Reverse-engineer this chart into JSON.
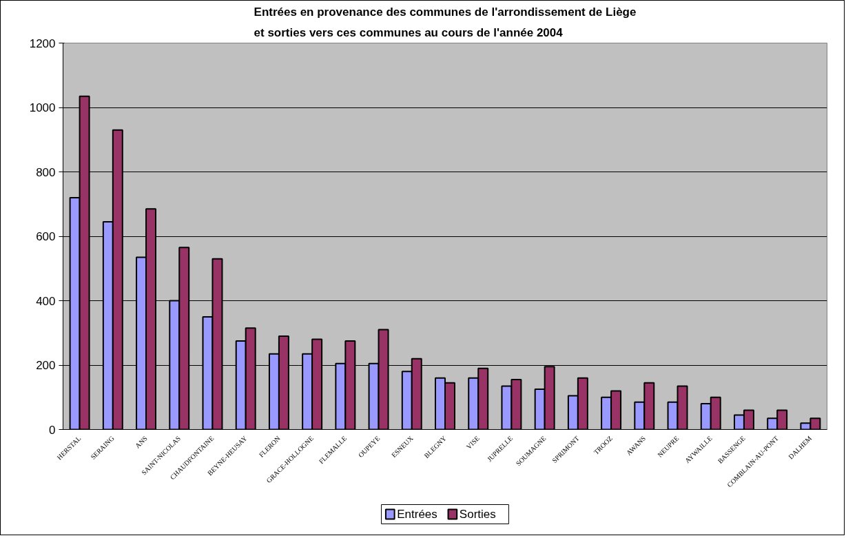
{
  "chart_data": {
    "type": "bar",
    "title": "Entrées en provenance des communes de l'arrondissement de Liège et sorties vers ces communes au cours de l'année 2004",
    "categories": [
      "HERSTAL",
      "SERAING",
      "ANS",
      "SAINT-NICOLAS",
      "CHAUDFONTAINE",
      "BEYNE-HEUSAY",
      "FLERON",
      "GRACE-HOLLOGNE",
      "FLEMALLE",
      "OUPEYE",
      "ESNEUX",
      "BLEGNY",
      "VISE",
      "JUPRELLE",
      "SOUMAGNE",
      "SPRIMONT",
      "TROOZ",
      "AWANS",
      "NEUPRE",
      "AYWAILLE",
      "BASSENGE",
      "COMBLAIN-AU-PONT",
      "DALHEM"
    ],
    "series": [
      {
        "name": "Entrées",
        "color": "#9999ff",
        "values": [
          720,
          645,
          535,
          400,
          350,
          275,
          235,
          235,
          205,
          205,
          180,
          160,
          160,
          135,
          125,
          105,
          100,
          85,
          85,
          80,
          45,
          35,
          20
        ]
      },
      {
        "name": "Sorties",
        "color": "#993366",
        "values": [
          1035,
          930,
          685,
          565,
          530,
          315,
          290,
          280,
          275,
          310,
          220,
          145,
          190,
          155,
          195,
          160,
          120,
          145,
          135,
          100,
          60,
          60,
          35
        ]
      }
    ],
    "ylim": [
      0,
      1200
    ],
    "yticks": [
      0,
      200,
      400,
      600,
      800,
      1000,
      1200
    ],
    "grid": "y",
    "legend": "bottom"
  }
}
